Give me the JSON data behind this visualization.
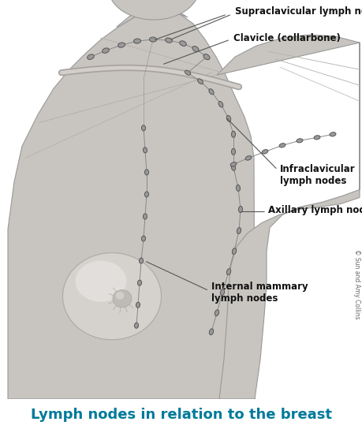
{
  "title": "Lymph nodes in relation to the breast",
  "title_color": "#007A9A",
  "title_fontsize": 13,
  "background_color": "#ffffff",
  "labels": {
    "supraclavicular": "Supraclavicular lymph nodes",
    "clavicle": "Clavicle (collarbone)",
    "infraclavicular": "Infraclavicular\nlymph nodes",
    "axillary": "Axillary lymph nodes",
    "internal_mammary": "Internal mammary\nlymph nodes"
  },
  "copyright": "© Sun and Amy Collins",
  "node_color": "#999999",
  "node_edge_color": "#555555",
  "line_color": "#888888",
  "label_fontsize": 8.5,
  "label_color": "#111111"
}
